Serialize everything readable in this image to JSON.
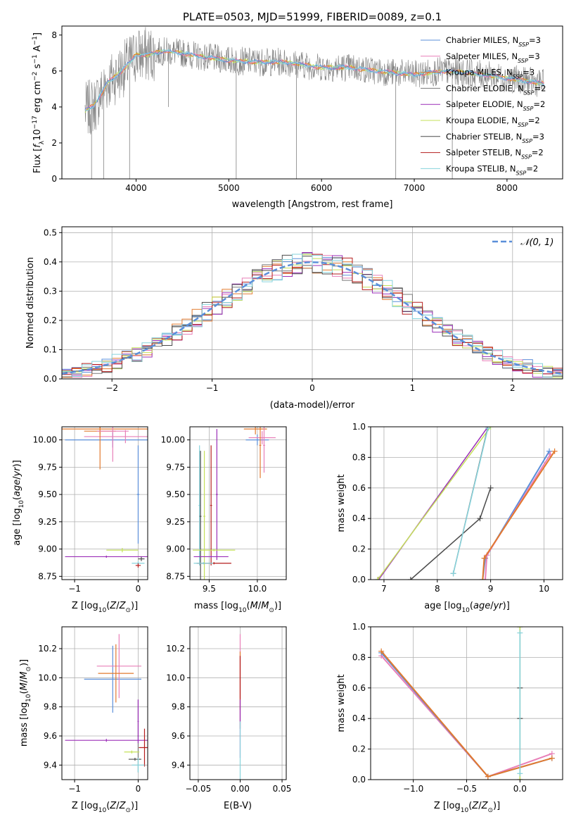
{
  "title": "PLATE=0503, MJD=51999, FIBERID=0089, z=0.1",
  "colors": {
    "chabrier_miles": "#5b8fd9",
    "salpeter_miles": "#e87fb8",
    "kroupa_miles": "#e27a2e",
    "chabrier_elodie": "#7a7a7a",
    "salpeter_elodie": "#9b2fb8",
    "kroupa_elodie": "#c4e05a",
    "chabrier_stelib": "#4a4a4a",
    "salpeter_stelib": "#b51e1e",
    "kroupa_stelib": "#86d3dc",
    "gaussian": "#5b8fd9",
    "grid": "#b0b0b0"
  },
  "chart_data": [
    {
      "id": "spectrum",
      "type": "line",
      "xlabel": "wavelength [Angstrom, rest frame]",
      "ylabel": "Flux [f_λ10^{-17} erg cm^{-2} s^{-1} A^{-1}]",
      "xlim": [
        3200,
        8600
      ],
      "ylim": [
        0,
        8.5
      ],
      "xticks": [
        4000,
        5000,
        6000,
        7000,
        8000
      ],
      "yticks": [
        0,
        2,
        4,
        6,
        8
      ],
      "grid": false,
      "legend_position": "top-right",
      "legend": [
        {
          "key": "chabrier_miles",
          "text": "Chabrier MILES, N",
          "sub": "SSP",
          "tail": "=3"
        },
        {
          "key": "salpeter_miles",
          "text": "Salpeter MILES, N",
          "sub": "SSP",
          "tail": "=3"
        },
        {
          "key": "kroupa_miles",
          "text": "Kroupa MILES, N",
          "sub": "SSP",
          "tail": "=3"
        },
        {
          "key": "chabrier_elodie",
          "text": "Chabrier ELODIE, N",
          "sub": "SSP",
          "tail": "=2"
        },
        {
          "key": "salpeter_elodie",
          "text": "Salpeter ELODIE, N",
          "sub": "SSP",
          "tail": "=2"
        },
        {
          "key": "kroupa_elodie",
          "text": "Kroupa ELODIE, N",
          "sub": "SSP",
          "tail": "=2"
        },
        {
          "key": "chabrier_stelib",
          "text": "Chabrier STELIB, N",
          "sub": "SSP",
          "tail": "=3"
        },
        {
          "key": "salpeter_stelib",
          "text": "Salpeter STELIB, N",
          "sub": "SSP",
          "tail": "=2"
        },
        {
          "key": "kroupa_stelib",
          "text": "Kroupa STELIB, N",
          "sub": "SSP",
          "tail": "=2"
        }
      ],
      "data_x_range": [
        3450,
        8400
      ],
      "continuum": [
        [
          3450,
          3.8
        ],
        [
          3550,
          4.1
        ],
        [
          3700,
          5.4
        ],
        [
          3800,
          5.8
        ],
        [
          3900,
          6.3
        ],
        [
          4000,
          6.9
        ],
        [
          4100,
          6.9
        ],
        [
          4300,
          7.1
        ],
        [
          4500,
          7.0
        ],
        [
          4700,
          6.8
        ],
        [
          5000,
          6.6
        ],
        [
          5300,
          6.5
        ],
        [
          5600,
          6.5
        ],
        [
          6000,
          6.2
        ],
        [
          6300,
          6.2
        ],
        [
          6600,
          6.0
        ],
        [
          7000,
          5.8
        ],
        [
          7300,
          6.0
        ],
        [
          7600,
          5.9
        ],
        [
          8000,
          5.6
        ],
        [
          8400,
          5.3
        ]
      ],
      "dips": [
        [
          3520,
          0
        ],
        [
          3650,
          0
        ],
        [
          3930,
          0
        ],
        [
          4350,
          4.0
        ],
        [
          5080,
          0
        ],
        [
          5730,
          0
        ],
        [
          6800,
          0
        ],
        [
          7410,
          0
        ]
      ]
    },
    {
      "id": "residuals",
      "type": "step",
      "xlabel": "(data-model)/error",
      "ylabel": "Normed distribution",
      "xlim": [
        -2.5,
        2.5
      ],
      "ylim": [
        0,
        0.52
      ],
      "xticks": [
        -2,
        -1,
        0,
        1,
        2
      ],
      "yticks": [
        0.0,
        0.1,
        0.2,
        0.3,
        0.4,
        0.5
      ],
      "grid": true,
      "legend_position": "top-right",
      "gaussian_label": "𝒩(0, 1)",
      "bin_edges_start": -2.5,
      "bin_width": 0.1
    },
    {
      "id": "age_vs_Z",
      "type": "errorbar",
      "xlabel": "Z [log10(Z/Z⊙)]",
      "ylabel": "age [log10(age/yr)]",
      "xlim": [
        -1.2,
        0.15
      ],
      "ylim": [
        8.72,
        10.12
      ],
      "xticks": [
        -1,
        0
      ],
      "yticks": [
        8.75,
        9.0,
        9.25,
        9.5,
        9.75,
        10.0
      ],
      "grid": true,
      "points": [
        {
          "key": "chabrier_miles",
          "x": -0.4,
          "xerr": 0.75,
          "y": 10.0,
          "yerr": 0.07
        },
        {
          "key": "salpeter_miles",
          "x": -0.2,
          "xerr": 0.65,
          "y": 10.03,
          "yerr": 0.06
        },
        {
          "key": "kroupa_miles",
          "x": -0.6,
          "xerr": 0.85,
          "y": 10.1,
          "yerr": 0.05
        },
        {
          "key": "kroupa_miles",
          "x": -0.6,
          "xerr": 0.25,
          "y": 10.08,
          "yerr": 0.35
        },
        {
          "key": "salpeter_miles",
          "x": -0.4,
          "xerr": 0.25,
          "y": 10.08,
          "yerr": 0.28
        },
        {
          "key": "chabrier_miles",
          "x": 0.0,
          "xerr": 0.02,
          "y": 9.5,
          "yerr": 0.45
        },
        {
          "key": "kroupa_elodie",
          "x": -0.25,
          "xerr": 0.25,
          "y": 8.99,
          "yerr": 0.02
        },
        {
          "key": "salpeter_elodie",
          "x": -0.5,
          "xerr": 0.65,
          "y": 8.93,
          "yerr": 0.01
        },
        {
          "key": "chabrier_stelib",
          "x": 0.05,
          "xerr": 0.05,
          "y": 8.91,
          "yerr": 0.02
        },
        {
          "key": "kroupa_stelib",
          "x": 0.0,
          "xerr": 0.1,
          "y": 8.87,
          "yerr": 0.02
        },
        {
          "key": "salpeter_stelib",
          "x": 0.0,
          "xerr": 0.04,
          "y": 8.85,
          "yerr": 0.02
        }
      ]
    },
    {
      "id": "age_vs_mass",
      "type": "errorbar",
      "xlabel": "mass [log10(M/M⊙)]",
      "ylabel": "",
      "xlim": [
        9.3,
        10.3
      ],
      "ylim": [
        8.72,
        10.12
      ],
      "xticks": [
        9.5,
        10.0
      ],
      "yticks": [
        8.75,
        9.0,
        9.25,
        9.5,
        9.75,
        10.0
      ],
      "grid": true,
      "points": [
        {
          "key": "chabrier_miles",
          "x": 10.0,
          "xerr": 0.12,
          "y": 10.0,
          "yerr": 0.05
        },
        {
          "key": "salpeter_miles",
          "x": 10.05,
          "xerr": 0.14,
          "y": 10.02,
          "yerr": 0.06
        },
        {
          "key": "kroupa_miles",
          "x": 9.98,
          "xerr": 0.12,
          "y": 10.1,
          "yerr": 0.05
        },
        {
          "key": "kroupa_miles",
          "x": 10.03,
          "xerr": 0.01,
          "y": 9.95,
          "yerr": 0.3
        },
        {
          "key": "salpeter_miles",
          "x": 10.07,
          "xerr": 0.01,
          "y": 9.95,
          "yerr": 0.25
        },
        {
          "key": "salpeter_elodie",
          "x": 9.58,
          "xerr": 0.01,
          "y": 9.5,
          "yerr": 0.6
        },
        {
          "key": "salpeter_stelib",
          "x": 9.52,
          "xerr": 0.01,
          "y": 9.4,
          "yerr": 0.55
        },
        {
          "key": "kroupa_elodie",
          "x": 9.45,
          "xerr": 0.01,
          "y": 9.3,
          "yerr": 0.6
        },
        {
          "key": "kroupa_stelib",
          "x": 9.4,
          "xerr": 0.01,
          "y": 9.4,
          "yerr": 0.55
        },
        {
          "key": "chabrier_stelib",
          "x": 9.41,
          "xerr": 0.01,
          "y": 9.3,
          "yerr": 0.6
        },
        {
          "key": "kroupa_elodie",
          "x": 9.55,
          "xerr": 0.22,
          "y": 8.99,
          "yerr": 0.01
        },
        {
          "key": "salpeter_elodie",
          "x": 9.52,
          "xerr": 0.18,
          "y": 8.93,
          "yerr": 0.01
        },
        {
          "key": "salpeter_stelib",
          "x": 9.55,
          "xerr": 0.18,
          "y": 8.87,
          "yerr": 0.01
        },
        {
          "key": "kroupa_stelib",
          "x": 9.44,
          "xerr": 0.1,
          "y": 8.87,
          "yerr": 0.01
        }
      ]
    },
    {
      "id": "massweight_vs_age",
      "type": "line",
      "xlabel": "age [log10(age/yr)]",
      "ylabel": "mass weight",
      "xlim": [
        6.75,
        10.35
      ],
      "ylim": [
        0,
        1.0
      ],
      "xticks": [
        7,
        8,
        9,
        10
      ],
      "yticks": [
        0.0,
        0.2,
        0.4,
        0.6,
        0.8,
        1.0
      ],
      "grid": true,
      "series": [
        {
          "key": "salpeter_elodie",
          "x": [
            6.9,
            8.95
          ],
          "y": [
            0.0,
            1.0
          ]
        },
        {
          "key": "kroupa_elodie",
          "x": [
            6.88,
            9.0
          ],
          "y": [
            0.0,
            1.0
          ]
        },
        {
          "key": "chabrier_stelib",
          "x": [
            7.5,
            8.8,
            9.0
          ],
          "y": [
            0.0,
            0.4,
            0.6
          ]
        },
        {
          "key": "chabrier_elodie",
          "x": [
            8.3,
            8.95
          ],
          "y": [
            0.04,
            1.0
          ]
        },
        {
          "key": "kroupa_stelib",
          "x": [
            8.3,
            8.95
          ],
          "y": [
            0.04,
            0.99
          ]
        },
        {
          "key": "chabrier_miles",
          "x": [
            8.85,
            8.9,
            10.1
          ],
          "y": [
            0.0,
            0.14,
            0.84
          ]
        },
        {
          "key": "salpeter_miles",
          "x": [
            8.9,
            8.93,
            10.12
          ],
          "y": [
            0.0,
            0.16,
            0.82
          ]
        },
        {
          "key": "kroupa_miles",
          "x": [
            8.85,
            8.88,
            10.2
          ],
          "y": [
            0.0,
            0.14,
            0.84
          ]
        }
      ]
    },
    {
      "id": "mass_vs_Z",
      "type": "errorbar",
      "xlabel": "Z [log10(Z/Z⊙)]",
      "ylabel": "mass [log10(M/M⊙)]",
      "xlim": [
        -1.2,
        0.15
      ],
      "ylim": [
        9.3,
        10.35
      ],
      "xticks": [
        -1,
        0
      ],
      "yticks": [
        9.4,
        9.6,
        9.8,
        10.0,
        10.2
      ],
      "grid": true,
      "points": [
        {
          "key": "chabrier_miles",
          "x": -0.4,
          "xerr": 0.45,
          "y": 9.99,
          "yerr": 0.23
        },
        {
          "key": "salpeter_miles",
          "x": -0.3,
          "xerr": 0.35,
          "y": 10.08,
          "yerr": 0.22
        },
        {
          "key": "kroupa_miles",
          "x": -0.35,
          "xerr": 0.28,
          "y": 10.03,
          "yerr": 0.2
        },
        {
          "key": "chabrier_elodie",
          "x": 0.0,
          "xerr": 0.01,
          "y": 9.6,
          "yerr": 0.25
        },
        {
          "key": "salpeter_elodie",
          "x": -0.5,
          "xerr": 0.65,
          "y": 9.57,
          "yerr": 0.01
        },
        {
          "key": "salpeter_elodie",
          "x": 0.0,
          "xerr": 0.01,
          "y": 9.7,
          "yerr": 0.15
        },
        {
          "key": "salpeter_stelib",
          "x": 0.1,
          "xerr": 0.09,
          "y": 9.52,
          "yerr": 0.13
        },
        {
          "key": "kroupa_elodie",
          "x": -0.1,
          "xerr": 0.12,
          "y": 9.49,
          "yerr": 0.01
        },
        {
          "key": "chabrier_stelib",
          "x": -0.05,
          "xerr": 0.1,
          "y": 9.44,
          "yerr": 0.01
        },
        {
          "key": "kroupa_stelib",
          "x": 0.0,
          "xerr": 0.1,
          "y": 9.4,
          "yerr": 0.05
        }
      ]
    },
    {
      "id": "mass_vs_ebv",
      "type": "errorbar",
      "xlabel": "E(B-V)",
      "ylabel": "",
      "xlim": [
        -0.06,
        0.055
      ],
      "ylim": [
        9.3,
        10.35
      ],
      "xticks": [
        -0.05,
        0.0,
        0.05
      ],
      "yticks": [
        9.4,
        9.6,
        9.8,
        10.0,
        10.2
      ],
      "grid": true,
      "points": [
        {
          "key": "salpeter_miles",
          "x": 0.0,
          "xerr": 0.0,
          "y": 10.08,
          "yerr": 0.22
        },
        {
          "key": "kroupa_miles",
          "x": 0.0,
          "xerr": 0.0,
          "y": 9.98,
          "yerr": 0.2
        },
        {
          "key": "salpeter_stelib",
          "x": 0.0,
          "xerr": 0.0,
          "y": 9.9,
          "yerr": 0.25
        },
        {
          "key": "salpeter_elodie",
          "x": 0.0,
          "xerr": 0.0,
          "y": 9.65,
          "yerr": 0.2
        },
        {
          "key": "kroupa_stelib",
          "x": 0.0,
          "xerr": 0.0,
          "y": 9.5,
          "yerr": 0.2
        }
      ]
    },
    {
      "id": "massweight_vs_Z",
      "type": "line",
      "xlabel": "Z [log10(Z/Z⊙)]",
      "ylabel": "mass weight",
      "xlim": [
        -1.4,
        0.4
      ],
      "ylim": [
        0,
        1.0
      ],
      "xticks": [
        -1.0,
        -0.5,
        0.0
      ],
      "yticks": [
        0.0,
        0.2,
        0.4,
        0.6,
        0.8,
        1.0
      ],
      "grid": true,
      "series": [
        {
          "key": "salpeter_miles",
          "x": [
            -1.3,
            -0.3,
            0.3
          ],
          "y": [
            0.81,
            0.02,
            0.17
          ]
        },
        {
          "key": "chabrier_miles",
          "x": [
            -1.3,
            -0.3,
            0.3
          ],
          "y": [
            0.83,
            0.02,
            0.14
          ]
        },
        {
          "key": "kroupa_miles",
          "x": [
            -1.3,
            -0.3,
            0.3
          ],
          "y": [
            0.84,
            0.02,
            0.14
          ]
        },
        {
          "key": "chabrier_stelib",
          "x": [
            0.0,
            0.0,
            0.0,
            0.0
          ],
          "y": [
            0.0,
            0.4,
            0.6,
            1.0
          ]
        },
        {
          "key": "kroupa_elodie",
          "x": [
            0.0,
            0.0
          ],
          "y": [
            0.0,
            1.0
          ]
        },
        {
          "key": "kroupa_stelib",
          "x": [
            0.0,
            0.0
          ],
          "y": [
            0.04,
            0.96
          ]
        }
      ]
    }
  ]
}
